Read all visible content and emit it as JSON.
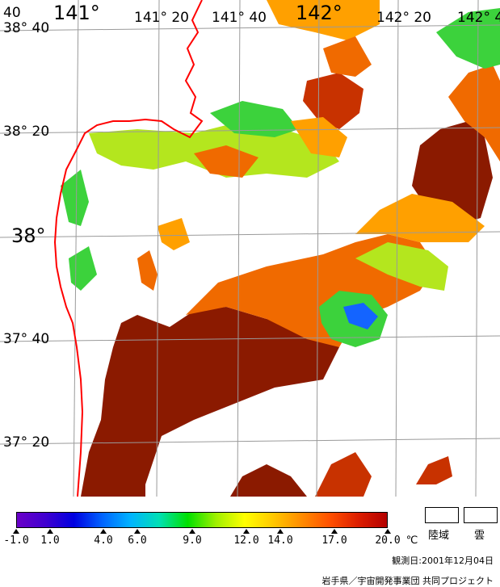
{
  "map": {
    "longitude_labels": [
      "141°",
      "141° 20",
      "141° 40",
      "142°",
      "142° 20",
      "142° 4"
    ],
    "latitude_labels": [
      "38° 40",
      "38° 20",
      "38°",
      "37° 40",
      "37° 20"
    ],
    "corner_label": "40",
    "sst_colors": [
      "#8b1a00",
      "#c83200",
      "#f06a00",
      "#ffa000",
      "#ffd200",
      "#b4e61e",
      "#3cd23c",
      "#1ec8a0",
      "#1464ff"
    ],
    "coastline_color": "#ff0000",
    "grid_color": "#9a9a9a"
  },
  "legend": {
    "tick_labels": [
      "-1.0",
      "1.0",
      "4.0",
      "6.0",
      "9.0",
      "12.0",
      "14.0",
      "17.0",
      "20.0"
    ],
    "unit": "℃",
    "land_label": "陸域",
    "cloud_label": "雲",
    "gradient_colors": [
      "#6a00c8",
      "#4000d0",
      "#0000e0",
      "#0064ff",
      "#00b4ff",
      "#00e0b4",
      "#00e000",
      "#a0f000",
      "#ffff00",
      "#ffc800",
      "#ff8c00",
      "#ff5000",
      "#dc1e00",
      "#b40000"
    ]
  },
  "footer": {
    "observation_date": "観測日:2001年12月04日",
    "credit": "岩手県／宇宙開発事業団 共同プロジェクト"
  }
}
